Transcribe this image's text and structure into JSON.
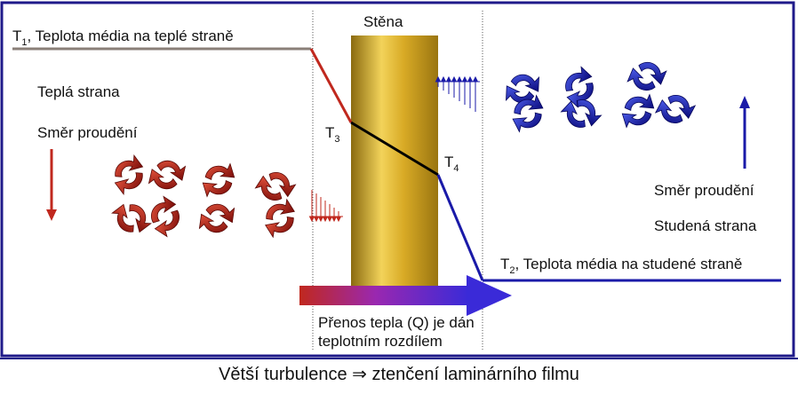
{
  "labels": {
    "t1_main": "T",
    "t1_sub": "1",
    "t1_text": ", Teplota média na teplé straně",
    "hot_side": "Teplá strana",
    "flow_left": "Směr proudění",
    "wall": "Stěna",
    "t3_main": "T",
    "t3_sub": "3",
    "t4_main": "T",
    "t4_sub": "4",
    "flow_right": "Směr proudění",
    "cold_side": "Studená strana",
    "t2_main": "T",
    "t2_sub": "2",
    "t2_text": ", Teplota média na studené straně",
    "transfer_line1": "Přenos tepla (Q) je dán",
    "transfer_line2": "teplotním rozdílem"
  },
  "caption": {
    "left": "Větší turbulence",
    "symbol": "⇒",
    "right": "ztenčení laminárního filmu"
  },
  "colors": {
    "frame": "#1f1a8a",
    "hot": "#c0281e",
    "cold": "#1a1aa8",
    "wall_gold": "#d4a41a",
    "grey_line": "#8a7f78",
    "t_line": "#000000"
  },
  "icons": {
    "hot_eddies": "curved-arrow-swirl-icon",
    "cold_eddies": "curved-arrow-swirl-icon",
    "flow_down": "arrow-down-icon",
    "flow_up": "arrow-up-icon",
    "heat_flow": "gradient-arrow-right-icon"
  }
}
